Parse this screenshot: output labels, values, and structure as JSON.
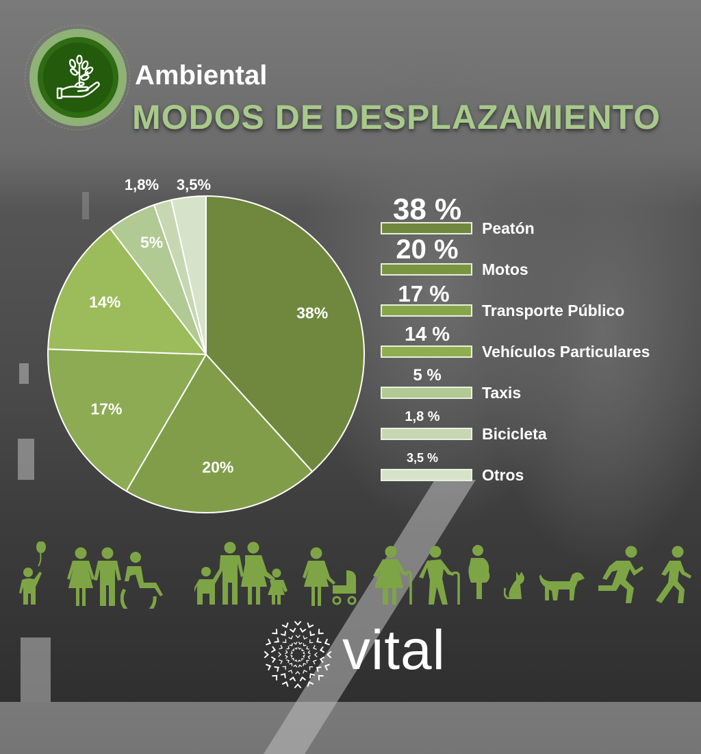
{
  "header": {
    "category": "Ambiental",
    "title": "MODOS DE DESPLAZAMIENTO",
    "badge_icon": "hand-plant-icon"
  },
  "colors": {
    "title_green": "#a8c98b",
    "badge_dark": "#235a0c",
    "badge_light": "#8fb276",
    "icon_green": "#7ea545"
  },
  "chart_data": {
    "type": "pie",
    "title": "MODOS DE DESPLAZAMIENTO",
    "categories": [
      "Peatón",
      "Motos",
      "Transporte Público",
      "Vehículos Particulares",
      "Taxis",
      "Bicicleta",
      "Otros"
    ],
    "values": [
      38,
      20,
      17,
      14,
      5,
      1.8,
      3.5
    ],
    "slice_labels": [
      "38%",
      "20%",
      "17%",
      "14%",
      "5%",
      "1,8%",
      "3,5%"
    ],
    "colors": [
      "#6f883e",
      "#829d4a",
      "#8dab52",
      "#9cbb5a",
      "#b1c992",
      "#c6d7b2",
      "#d7e3c9"
    ],
    "start_angle": "12 o'clock, clockwise",
    "legend_position": "right"
  },
  "legend": {
    "items": [
      {
        "value": "38 %",
        "label": "Peatón",
        "color": "#6f883e"
      },
      {
        "value": "20 %",
        "label": "Motos",
        "color": "#829d4a"
      },
      {
        "value": "17 %",
        "label": "Transporte Público",
        "color": "#8dab52"
      },
      {
        "value": "14 %",
        "label": "Vehículos Particulares",
        "color": "#9cbb5a"
      },
      {
        "value": "5 %",
        "label": "Taxis",
        "color": "#b1c992"
      },
      {
        "value": "1,8 %",
        "label": "Bicicleta",
        "color": "#c6d7b2"
      },
      {
        "value": "3,5 %",
        "label": "Otros",
        "color": "#d7e3c9"
      }
    ]
  },
  "pedestrian_icons": [
    "child-balloon-icon",
    "woman-icon",
    "man-icon",
    "wheelchair-icon",
    "family-icon",
    "mother-stroller-icon",
    "elderly-woman-cane-icon",
    "elderly-man-cane-icon",
    "pregnant-woman-icon",
    "cat-icon",
    "dog-icon",
    "runner-icon",
    "walker-icon"
  ],
  "footer": {
    "brand": "vital"
  }
}
